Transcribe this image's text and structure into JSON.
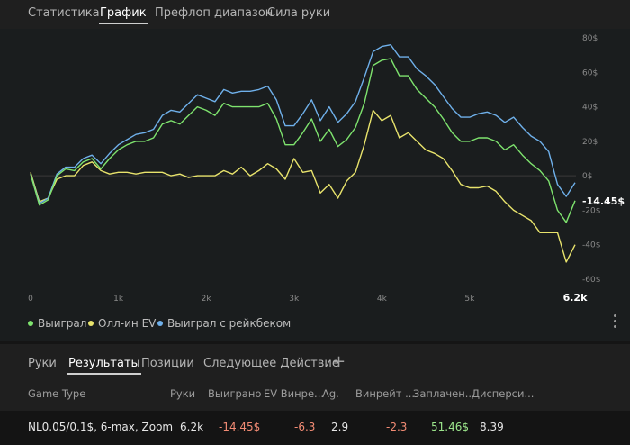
{
  "top_tabs": [
    "Статистика",
    "График",
    "Префлоп диапазон",
    "Сила руки"
  ],
  "top_tab_active": 1,
  "chart_data": {
    "type": "line",
    "x_ticks": [
      "0",
      "1k",
      "2k",
      "3k",
      "4k",
      "5k"
    ],
    "x_end_label": "6.2k",
    "x_range": [
      0,
      6200
    ],
    "y_ticks": [
      "80$",
      "60$",
      "40$",
      "20$",
      "0$",
      "-20$",
      "-40$",
      "-60$"
    ],
    "y_range": [
      -60,
      80
    ],
    "current_value_label": "-14.45$",
    "grid": false,
    "series": [
      {
        "name": "Выиграл",
        "color": "#7ee36e",
        "x": [
          0,
          100,
          200,
          300,
          400,
          500,
          600,
          700,
          800,
          900,
          1000,
          1100,
          1200,
          1300,
          1400,
          1500,
          1600,
          1700,
          1800,
          1900,
          2000,
          2100,
          2200,
          2300,
          2400,
          2500,
          2600,
          2700,
          2800,
          2900,
          3000,
          3100,
          3200,
          3300,
          3400,
          3500,
          3600,
          3700,
          3800,
          3900,
          4000,
          4100,
          4200,
          4300,
          4400,
          4500,
          4600,
          4700,
          4800,
          4900,
          5000,
          5100,
          5200,
          5300,
          5400,
          5500,
          5600,
          5700,
          5800,
          5900,
          6000,
          6100,
          6200
        ],
        "values": [
          1,
          -17,
          -14,
          0,
          4,
          3,
          8,
          10,
          4,
          10,
          15,
          18,
          20,
          20,
          22,
          30,
          32,
          30,
          35,
          40,
          38,
          35,
          42,
          40,
          40,
          40,
          40,
          42,
          33,
          18,
          18,
          25,
          33,
          20,
          27,
          17,
          21,
          28,
          42,
          64,
          67,
          68,
          58,
          58,
          50,
          45,
          40,
          33,
          25,
          20,
          20,
          22,
          22,
          20,
          15,
          18,
          12,
          7,
          3,
          -3,
          -20,
          -27,
          -14.45
        ]
      },
      {
        "name": "Олл-ин EV",
        "color": "#e8e36c",
        "x": [
          0,
          100,
          200,
          300,
          400,
          500,
          600,
          700,
          800,
          900,
          1000,
          1100,
          1200,
          1300,
          1400,
          1500,
          1600,
          1700,
          1800,
          1900,
          2000,
          2100,
          2200,
          2300,
          2400,
          2500,
          2600,
          2700,
          2800,
          2900,
          3000,
          3100,
          3200,
          3300,
          3400,
          3500,
          3600,
          3700,
          3800,
          3900,
          4000,
          4100,
          4200,
          4300,
          4400,
          4500,
          4600,
          4700,
          4800,
          4900,
          5000,
          5100,
          5200,
          5300,
          5400,
          5500,
          5600,
          5700,
          5800,
          5900,
          6000,
          6100,
          6200
        ],
        "values": [
          2,
          -15,
          -13,
          -2,
          0,
          0,
          6,
          8,
          3,
          1,
          2,
          2,
          1,
          2,
          2,
          2,
          0,
          1,
          -1,
          0,
          0,
          0,
          3,
          1,
          5,
          0,
          3,
          7,
          4,
          -2,
          10,
          2,
          3,
          -10,
          -5,
          -13,
          -3,
          2,
          18,
          38,
          32,
          35,
          22,
          25,
          20,
          15,
          13,
          10,
          3,
          -5,
          -7,
          -7,
          -6,
          -9,
          -15,
          -20,
          -23,
          -26,
          -33,
          -33,
          -33,
          -50,
          -40
        ]
      },
      {
        "name": "Выиграл с рейкбеком",
        "color": "#6fb0ea",
        "x": [
          0,
          100,
          200,
          300,
          400,
          500,
          600,
          700,
          800,
          900,
          1000,
          1100,
          1200,
          1300,
          1400,
          1500,
          1600,
          1700,
          1800,
          1900,
          2000,
          2100,
          2200,
          2300,
          2400,
          2500,
          2600,
          2700,
          2800,
          2900,
          3000,
          3100,
          3200,
          3300,
          3400,
          3500,
          3600,
          3700,
          3800,
          3900,
          4000,
          4100,
          4200,
          4300,
          4400,
          4500,
          4600,
          4700,
          4800,
          4900,
          5000,
          5100,
          5200,
          5300,
          5400,
          5500,
          5600,
          5700,
          5800,
          5900,
          6000,
          6100,
          6200
        ],
        "values": [
          1,
          -16,
          -13,
          1,
          5,
          5,
          10,
          12,
          7,
          13,
          18,
          21,
          24,
          25,
          27,
          35,
          38,
          37,
          42,
          47,
          45,
          43,
          50,
          48,
          49,
          49,
          50,
          52,
          44,
          29,
          29,
          36,
          44,
          32,
          40,
          31,
          36,
          43,
          57,
          72,
          75,
          76,
          69,
          69,
          62,
          58,
          53,
          46,
          39,
          34,
          34,
          36,
          37,
          35,
          31,
          34,
          28,
          23,
          20,
          14,
          -5,
          -12,
          -4
        ]
      }
    ]
  },
  "legend": [
    {
      "label": "Выиграл",
      "color": "#7ee36e"
    },
    {
      "label": "Олл-ин EV",
      "color": "#e8e36c"
    },
    {
      "label": "Выиграл с рейкбеком",
      "color": "#6fb0ea"
    }
  ],
  "bottom_tabs": [
    "Руки",
    "Результаты",
    "Позиции",
    "Следующее Действие"
  ],
  "bottom_tab_active": 1,
  "table": {
    "headers": [
      "Game Type",
      "Руки",
      "Выиграно",
      "EV Винре...",
      "Ag.",
      "Винрейт ...",
      "Заплачен...",
      "Дисперси..."
    ],
    "row": {
      "game_type": "NL0.05/0.1$, 6-max, Zoom",
      "hands": "6.2k",
      "won": "-14.45$",
      "ev_winrate": "-6.3",
      "ag": "2.9",
      "winrate": "-2.3",
      "paid": "51.46$",
      "variance": "8.39"
    }
  },
  "colors": {
    "negative": "#f28b74",
    "positive": "#9ce68c"
  }
}
